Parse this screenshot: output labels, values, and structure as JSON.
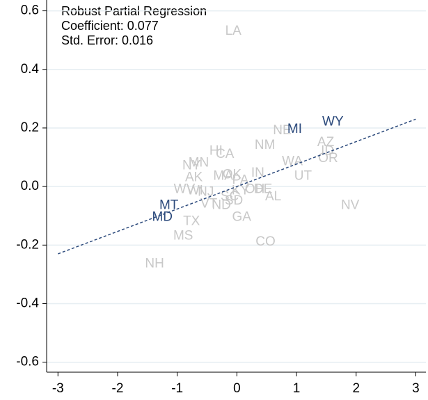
{
  "chart_data": {
    "type": "scatter",
    "annotations": [
      "Robust Partial Regression",
      "Coefficient: 0.077",
      "Std. Error:  0.016"
    ],
    "xlim": [
      -3.19,
      3.17
    ],
    "ylim": [
      -0.634,
      0.637
    ],
    "xticks": [
      -3,
      -2,
      -1,
      0,
      1,
      2,
      3
    ],
    "yticks": [
      -0.6,
      -0.4,
      -0.2,
      {
        "value": 0,
        "label": "0.0"
      },
      0.2,
      0.4,
      0.6
    ],
    "grid": true,
    "grid_color": "#e6eef2",
    "label_color": "#c8c8c8",
    "fit_line": {
      "x": [
        -3,
        3
      ],
      "y": [
        -0.23,
        0.23
      ],
      "color": "#2c4a7c"
    },
    "points": [
      {
        "label": "LA",
        "x": -0.06,
        "y": 0.53,
        "color": "#c8c8c8"
      },
      {
        "label": "NE",
        "x": 0.76,
        "y": 0.19,
        "color": "#c8c8c8"
      },
      {
        "label": "AZ",
        "x": 1.49,
        "y": 0.15,
        "color": "#c8c8c8"
      },
      {
        "label": "ID",
        "x": 1.52,
        "y": 0.12,
        "color": "#c8c8c8"
      },
      {
        "label": "OR",
        "x": 1.53,
        "y": 0.095,
        "color": "#c8c8c8"
      },
      {
        "label": "NM",
        "x": 0.47,
        "y": 0.14,
        "color": "#c8c8c8"
      },
      {
        "label": "WA",
        "x": 0.93,
        "y": 0.085,
        "color": "#c8c8c8"
      },
      {
        "label": "UT",
        "x": 1.11,
        "y": 0.035,
        "color": "#c8c8c8"
      },
      {
        "label": "HI",
        "x": -0.35,
        "y": 0.12,
        "color": "#c8c8c8"
      },
      {
        "label": "CA",
        "x": -0.2,
        "y": 0.11,
        "color": "#c8c8c8"
      },
      {
        "label": "MN",
        "x": -0.64,
        "y": 0.08,
        "color": "#c8c8c8"
      },
      {
        "label": "NY",
        "x": -0.76,
        "y": 0.07,
        "color": "#c8c8c8"
      },
      {
        "label": "OK",
        "x": -0.08,
        "y": 0.04,
        "color": "#c8c8c8"
      },
      {
        "label": "MA",
        "x": -0.23,
        "y": 0.035,
        "color": "#c8c8c8"
      },
      {
        "label": "IN",
        "x": 0.35,
        "y": 0.045,
        "color": "#c8c8c8"
      },
      {
        "label": "AK",
        "x": -0.72,
        "y": 0.03,
        "color": "#c8c8c8"
      },
      {
        "label": "PA",
        "x": 0.06,
        "y": 0.02,
        "color": "#c8c8c8"
      },
      {
        "label": "DE",
        "x": 0.44,
        "y": -0.01,
        "color": "#c8c8c8"
      },
      {
        "label": "OH",
        "x": 0.3,
        "y": -0.01,
        "color": "#c8c8c8"
      },
      {
        "label": "AL",
        "x": 0.61,
        "y": -0.035,
        "color": "#c8c8c8"
      },
      {
        "label": "WV",
        "x": -0.88,
        "y": -0.01,
        "color": "#c8c8c8"
      },
      {
        "label": "WI",
        "x": -0.7,
        "y": -0.015,
        "color": "#c8c8c8"
      },
      {
        "label": "NJ",
        "x": -0.52,
        "y": -0.02,
        "color": "#c8c8c8"
      },
      {
        "label": "KY",
        "x": 0.06,
        "y": -0.015,
        "color": "#c8c8c8"
      },
      {
        "label": "SC",
        "x": -0.12,
        "y": -0.035,
        "color": "#c8c8c8"
      },
      {
        "label": "VT",
        "x": -0.47,
        "y": -0.06,
        "color": "#c8c8c8"
      },
      {
        "label": "ND",
        "x": -0.26,
        "y": -0.065,
        "color": "#c8c8c8"
      },
      {
        "label": "SD",
        "x": -0.05,
        "y": -0.05,
        "color": "#c8c8c8"
      },
      {
        "label": "NV",
        "x": 1.9,
        "y": -0.065,
        "color": "#c8c8c8"
      },
      {
        "label": "TX",
        "x": -0.76,
        "y": -0.12,
        "color": "#c8c8c8"
      },
      {
        "label": "GA",
        "x": 0.08,
        "y": -0.105,
        "color": "#c8c8c8"
      },
      {
        "label": "MS",
        "x": -0.9,
        "y": -0.17,
        "color": "#c8c8c8"
      },
      {
        "label": "CO",
        "x": 0.48,
        "y": -0.19,
        "color": "#c8c8c8"
      },
      {
        "label": "NH",
        "x": -1.38,
        "y": -0.265,
        "color": "#c8c8c8"
      },
      {
        "label": "MI",
        "x": 0.97,
        "y": 0.195,
        "color": "#2c4a7c"
      },
      {
        "label": "WY",
        "x": 1.61,
        "y": 0.22,
        "color": "#2c4a7c"
      },
      {
        "label": "MT",
        "x": -1.14,
        "y": -0.065,
        "color": "#2c4a7c"
      },
      {
        "label": "MD",
        "x": -1.25,
        "y": -0.105,
        "color": "#2c4a7c"
      }
    ]
  }
}
